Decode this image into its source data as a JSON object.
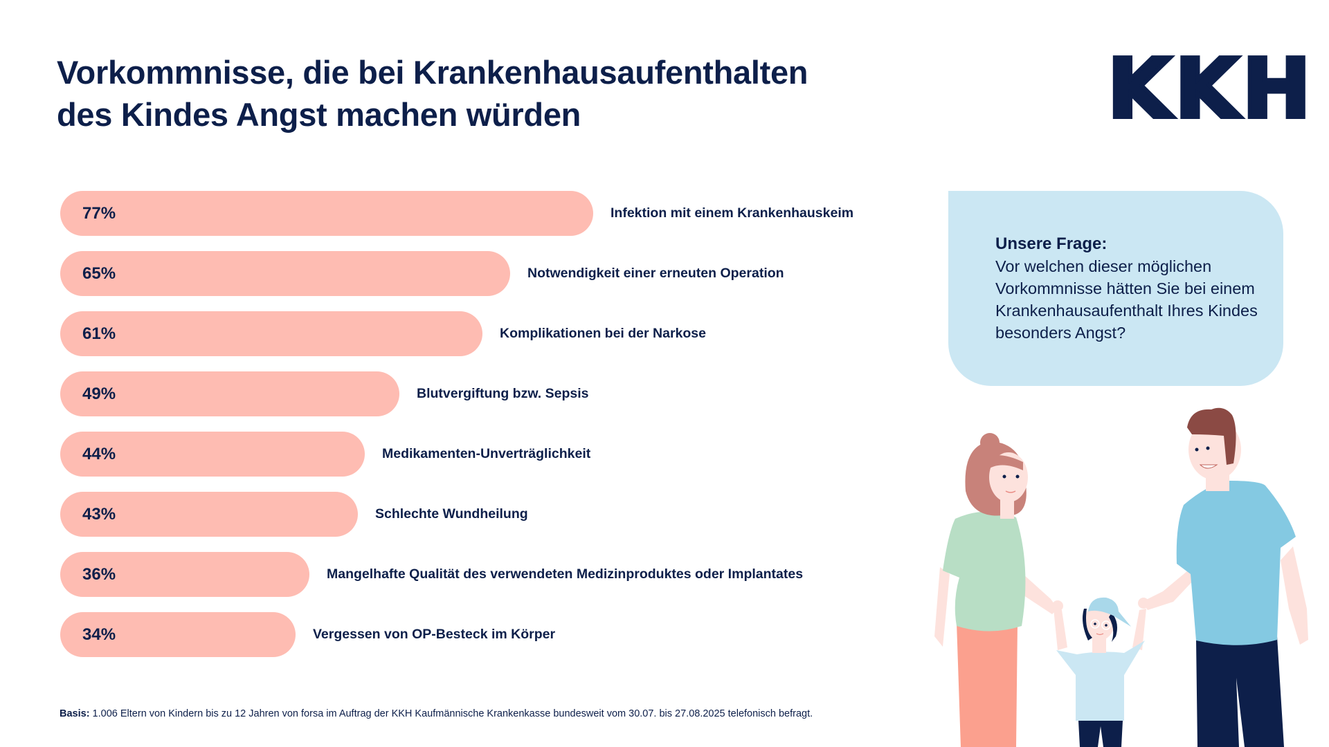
{
  "header": {
    "title_line1": "Vorkommnisse, die bei Krankenhausaufenthalten",
    "title_line2": "des Kindes Angst machen würden",
    "logo_text": "KKH"
  },
  "question": {
    "heading": "Unsere Frage:",
    "text": "Vor welchen dieser möglichen Vorkommnisse hätten Sie bei einem Krankenhausaufenthalt Ihres Kindes besonders Angst?"
  },
  "footnote": {
    "label": "Basis:",
    "text": " 1.006 Eltern von Kindern bis zu 12 Jahren von forsa im Auftrag der KKH Kaufmännische Krankenkasse bundesweit vom 30.07. bis 27.08.2025 telefonisch befragt."
  },
  "colors": {
    "bar": "#febcb2",
    "text": "#0d1f4a",
    "bubble": "#cbe7f3"
  },
  "chart_data": {
    "type": "bar",
    "orientation": "horizontal",
    "title": "Vorkommnisse, die bei Krankenhausaufenthalten des Kindes Angst machen würden",
    "xlabel": "",
    "ylabel": "",
    "unit": "%",
    "xlim": [
      0,
      100
    ],
    "grid": false,
    "categories": [
      "Infektion mit einem Krankenhauskeim",
      "Notwendigkeit einer erneuten Operation",
      "Komplikationen bei der Narkose",
      "Blutvergiftung bzw. Sepsis",
      "Medikamenten-Unverträglichkeit",
      "Schlechte Wundheilung",
      "Mangelhafte Qualität des verwendeten Medizinproduktes oder Implantates",
      "Vergessen von OP-Besteck im Körper"
    ],
    "values": [
      77,
      65,
      61,
      49,
      44,
      43,
      36,
      34
    ],
    "value_labels": [
      "77%",
      "65%",
      "61%",
      "49%",
      "44%",
      "43%",
      "36%",
      "34%"
    ]
  }
}
